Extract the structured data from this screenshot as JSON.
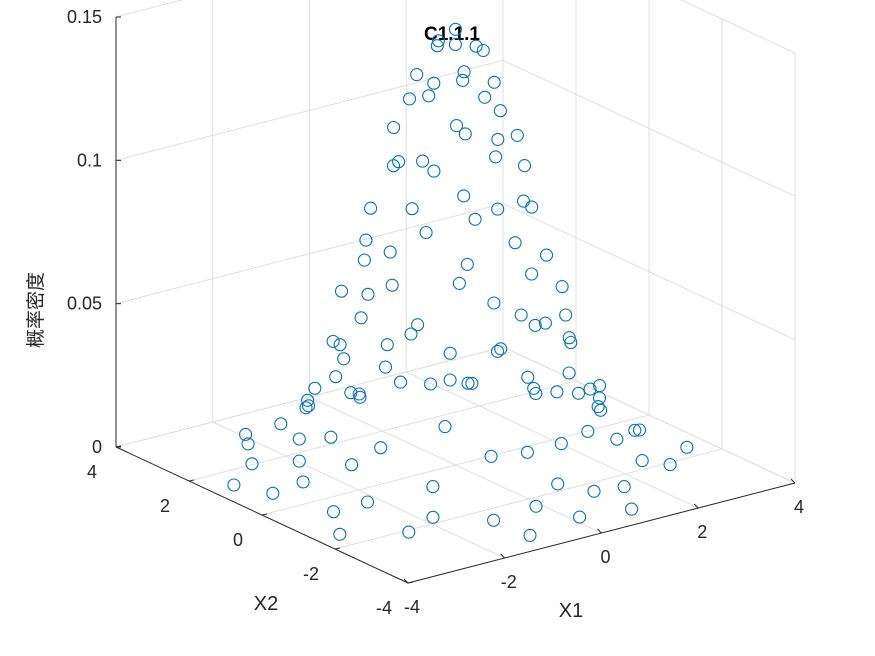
{
  "chart_data": {
    "type": "scatter",
    "projection": "3d",
    "title": "C1.1.1",
    "xlabel": "X1",
    "ylabel": "X2",
    "zlabel": "概率密度",
    "xlim": [
      -4,
      4
    ],
    "ylim": [
      -4,
      4
    ],
    "zlim": [
      0,
      0.15
    ],
    "xticks": [
      "-4",
      "-2",
      "0",
      "2",
      "4"
    ],
    "yticks": [
      "-4",
      "-2",
      "0",
      "2",
      "4"
    ],
    "zticks": [
      "0",
      "0.05",
      "0.1",
      "0.15"
    ],
    "grid": true,
    "marker": "circle",
    "color": "#0072BD",
    "series": [
      {
        "points": [
          [
            0.0,
            0.0,
            0.152
          ],
          [
            0.2,
            -0.3,
            0.147
          ],
          [
            -0.3,
            0.1,
            0.147
          ],
          [
            0.3,
            0.4,
            0.143
          ],
          [
            -0.2,
            -0.5,
            0.141
          ],
          [
            0.5,
            -0.1,
            0.143
          ],
          [
            -0.5,
            0.4,
            0.136
          ],
          [
            0.1,
            0.6,
            0.144
          ],
          [
            -0.6,
            -0.2,
            0.137
          ],
          [
            0.6,
            0.6,
            0.128
          ],
          [
            0.8,
            0.0,
            0.13
          ],
          [
            -0.8,
            0.2,
            0.13
          ],
          [
            0.0,
            -0.8,
            0.133
          ],
          [
            0.4,
            -0.7,
            0.126
          ],
          [
            -0.4,
            -0.8,
            0.122
          ],
          [
            0.9,
            -0.5,
            0.114
          ],
          [
            -0.9,
            -0.6,
            0.11
          ],
          [
            0.7,
            0.9,
            0.11
          ],
          [
            -0.6,
            0.9,
            0.115
          ],
          [
            0.2,
            1.0,
            0.122
          ],
          [
            1.1,
            0.3,
            0.107
          ],
          [
            -1.1,
            0.1,
            0.11
          ],
          [
            0.0,
            -1.1,
            0.114
          ],
          [
            1.2,
            -0.3,
            0.101
          ],
          [
            -1.2,
            -0.4,
            0.097
          ],
          [
            0.5,
            -1.2,
            0.097
          ],
          [
            -0.5,
            -1.2,
            0.095
          ],
          [
            1.0,
            1.1,
            0.083
          ],
          [
            -1.0,
            1.0,
            0.088
          ],
          [
            0.3,
            1.3,
            0.097
          ],
          [
            -0.3,
            1.3,
            0.098
          ],
          [
            1.4,
            0.7,
            0.079
          ],
          [
            -1.4,
            0.6,
            0.081
          ],
          [
            1.5,
            -0.1,
            0.084
          ],
          [
            -1.5,
            -0.2,
            0.082
          ],
          [
            0.1,
            -1.5,
            0.086
          ],
          [
            0.9,
            -1.3,
            0.077
          ],
          [
            -0.9,
            -1.3,
            0.075
          ],
          [
            1.6,
            -0.8,
            0.06
          ],
          [
            -1.6,
            -0.9,
            0.058
          ],
          [
            1.3,
            1.4,
            0.056
          ],
          [
            -1.3,
            1.4,
            0.058
          ],
          [
            0.6,
            1.6,
            0.069
          ],
          [
            -0.6,
            1.7,
            0.064
          ],
          [
            1.8,
            0.3,
            0.057
          ],
          [
            -1.8,
            0.2,
            0.058
          ],
          [
            0.0,
            -1.8,
            0.063
          ],
          [
            0.5,
            -1.8,
            0.058
          ],
          [
            -0.5,
            -1.9,
            0.054
          ],
          [
            1.9,
            -0.5,
            0.047
          ],
          [
            -1.9,
            -0.6,
            0.046
          ],
          [
            1.7,
            1.2,
            0.042
          ],
          [
            -1.7,
            1.1,
            0.044
          ],
          [
            1.1,
            -1.7,
            0.048
          ],
          [
            -1.1,
            -1.8,
            0.044
          ],
          [
            0.2,
            2.0,
            0.05
          ],
          [
            -0.3,
            2.0,
            0.049
          ],
          [
            2.1,
            0.6,
            0.036
          ],
          [
            -2.1,
            0.5,
            0.037
          ],
          [
            2.2,
            -0.2,
            0.036
          ],
          [
            -2.2,
            -0.3,
            0.035
          ],
          [
            0.0,
            -2.2,
            0.038
          ],
          [
            0.8,
            2.1,
            0.033
          ],
          [
            -0.8,
            2.1,
            0.033
          ],
          [
            1.5,
            -1.7,
            0.03
          ],
          [
            -1.5,
            -1.7,
            0.03
          ],
          [
            2.0,
            1.5,
            0.022
          ],
          [
            -2.0,
            1.4,
            0.023
          ],
          [
            2.3,
            -0.9,
            0.023
          ],
          [
            -2.3,
            -1.0,
            0.022
          ],
          [
            1.4,
            2.0,
            0.021
          ],
          [
            -1.4,
            2.0,
            0.021
          ],
          [
            0.4,
            2.4,
            0.026
          ],
          [
            -0.5,
            2.4,
            0.025
          ],
          [
            2.5,
            0.2,
            0.02
          ],
          [
            -2.5,
            0.1,
            0.02
          ],
          [
            0.3,
            -2.5,
            0.021
          ],
          [
            -0.4,
            -2.5,
            0.021
          ],
          [
            1.0,
            -2.3,
            0.021
          ],
          [
            -1.0,
            -2.3,
            0.021
          ],
          [
            2.6,
            -0.5,
            0.015
          ],
          [
            -2.6,
            -0.6,
            0.015
          ],
          [
            2.4,
            1.2,
            0.013
          ],
          [
            -2.4,
            1.1,
            0.013
          ],
          [
            1.9,
            -1.9,
            0.012
          ],
          [
            -1.9,
            -1.9,
            0.012
          ],
          [
            2.7,
            0.8,
            0.009
          ],
          [
            -2.7,
            0.7,
            0.009
          ],
          [
            0.9,
            2.7,
            0.009
          ],
          [
            -1.0,
            2.7,
            0.009
          ],
          [
            0.0,
            -2.8,
            0.01
          ],
          [
            2.8,
            -1.2,
            0.007
          ],
          [
            -2.8,
            -1.3,
            0.007
          ],
          [
            1.7,
            2.4,
            0.008
          ],
          [
            -1.8,
            2.4,
            0.008
          ],
          [
            2.2,
            -2.2,
            0.005
          ],
          [
            -2.2,
            -2.3,
            0.005
          ],
          [
            0.6,
            -3.0,
            0.006
          ],
          [
            -0.6,
            -3.0,
            0.006
          ],
          [
            3.0,
            0.0,
            0.006
          ],
          [
            -3.0,
            0.2,
            0.006
          ],
          [
            0.1,
            3.0,
            0.007
          ],
          [
            2.9,
            1.7,
            0.004
          ],
          [
            -3.0,
            1.6,
            0.004
          ],
          [
            1.3,
            -2.9,
            0.004
          ],
          [
            -1.4,
            -2.9,
            0.004
          ],
          [
            3.2,
            -0.8,
            0.003
          ],
          [
            -3.2,
            -0.9,
            0.003
          ],
          [
            2.3,
            2.6,
            0.003
          ],
          [
            -2.4,
            2.5,
            0.003
          ],
          [
            0.5,
            3.3,
            0.003
          ],
          [
            -0.6,
            3.3,
            0.003
          ],
          [
            3.4,
            0.6,
            0.002
          ],
          [
            -3.4,
            0.5,
            0.002
          ],
          [
            0.0,
            -3.4,
            0.002
          ],
          [
            2.7,
            -2.3,
            0.002
          ],
          [
            -2.7,
            -2.3,
            0.002
          ],
          [
            3.5,
            -1.7,
            0.001
          ],
          [
            -3.6,
            -1.6,
            0.001
          ],
          [
            1.9,
            3.2,
            0.001
          ],
          [
            -2.0,
            3.1,
            0.001
          ],
          [
            1.0,
            -3.5,
            0.001
          ],
          [
            -1.1,
            -3.5,
            0.001
          ],
          [
            3.6,
            1.4,
            0.001
          ],
          [
            -3.6,
            1.3,
            0.001
          ]
        ]
      }
    ]
  }
}
